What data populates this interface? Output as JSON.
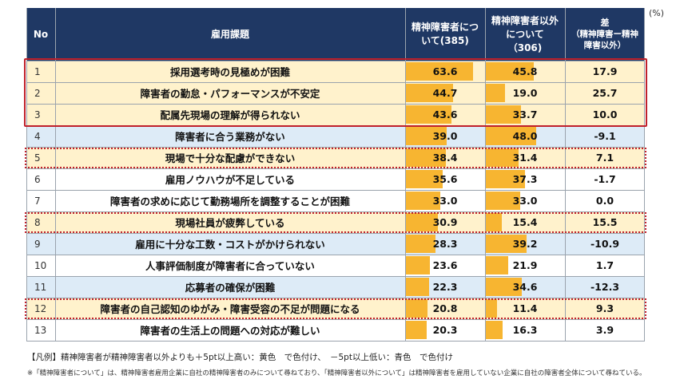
{
  "unit": "(%)",
  "colors": {
    "header_bg": "#1f3864",
    "highlight_yellow": "#fff2cc",
    "highlight_blue": "#ddebf7",
    "bar": "#f7b531",
    "frame": "#c0202a"
  },
  "header": {
    "no": "No",
    "issue": "雇用課題",
    "col1": "精神障害者について(385)",
    "col2": "精神障害者以外について（306)",
    "diff": "差",
    "diff_sub": "（精神障害ー精神障害以外）"
  },
  "chart_data": {
    "type": "table",
    "columns": [
      "No",
      "雇用課題",
      "精神障害者について(385)",
      "精神障害者以外について（306)",
      "差"
    ],
    "rows": [
      {
        "no": "1",
        "issue": "採用選考時の見極めが困難",
        "v1": 63.6,
        "v2": 45.8,
        "diff": "17.9",
        "highlight": "yellow",
        "frame": "solid"
      },
      {
        "no": "2",
        "issue": "障害者の勤怠・パフォーマンスが不安定",
        "v1": 44.7,
        "v2": 19.0,
        "diff": "25.7",
        "highlight": "yellow",
        "frame": "solid"
      },
      {
        "no": "3",
        "issue": "配属先現場の理解が得られない",
        "v1": 43.6,
        "v2": 33.7,
        "diff": "10.0",
        "highlight": "yellow",
        "frame": "solid"
      },
      {
        "no": "4",
        "issue": "障害者に合う業務がない",
        "v1": 39.0,
        "v2": 48.0,
        "diff": "-9.1",
        "highlight": "blue",
        "frame": "none"
      },
      {
        "no": "5",
        "issue": "現場で十分な配慮ができない",
        "v1": 38.4,
        "v2": 31.4,
        "diff": "7.1",
        "highlight": "yellow",
        "frame": "dotted"
      },
      {
        "no": "6",
        "issue": "雇用ノウハウが不足している",
        "v1": 35.6,
        "v2": 37.3,
        "diff": "-1.7",
        "highlight": "none",
        "frame": "none"
      },
      {
        "no": "7",
        "issue": "障害者の求めに応じて勤務場所を調整することが困難",
        "v1": 33.0,
        "v2": 33.0,
        "diff": "0.0",
        "highlight": "none",
        "frame": "none"
      },
      {
        "no": "8",
        "issue": "現場社員が疲弊している",
        "v1": 30.9,
        "v2": 15.4,
        "diff": "15.5",
        "highlight": "yellow",
        "frame": "dotted"
      },
      {
        "no": "9",
        "issue": "雇用に十分な工数・コストがかけられない",
        "v1": 28.3,
        "v2": 39.2,
        "diff": "-10.9",
        "highlight": "blue",
        "frame": "none"
      },
      {
        "no": "10",
        "issue": "人事評価制度が障害者に合っていない",
        "v1": 23.6,
        "v2": 21.9,
        "diff": "1.7",
        "highlight": "none",
        "frame": "none"
      },
      {
        "no": "11",
        "issue": "応募者の確保が困難",
        "v1": 22.3,
        "v2": 34.6,
        "diff": "-12.3",
        "highlight": "blue",
        "frame": "none"
      },
      {
        "no": "12",
        "issue": "障害者の自己認知のゆがみ・障害受容の不足が問題になる",
        "v1": 20.8,
        "v2": 11.4,
        "diff": "9.3",
        "highlight": "yellow",
        "frame": "dotted"
      },
      {
        "no": "13",
        "issue": "障害者の生活上の問題への対応が難しい",
        "v1": 20.3,
        "v2": 16.3,
        "diff": "3.9",
        "highlight": "none",
        "frame": "none"
      }
    ]
  },
  "legend": "【凡例】精神障害者が精神障害者以外よりも＋5pt以上高い：黄色　で色付け、　－5pt以上低い：青色　で色付け",
  "footnote": "※「精神障害者について」は、精神障害者雇用企業に自社の精神障害者のみについて尋ねており、「精神障害者以外について」は精神障害者を雇用していない企業に自社の障害者全体について尋ねている。"
}
